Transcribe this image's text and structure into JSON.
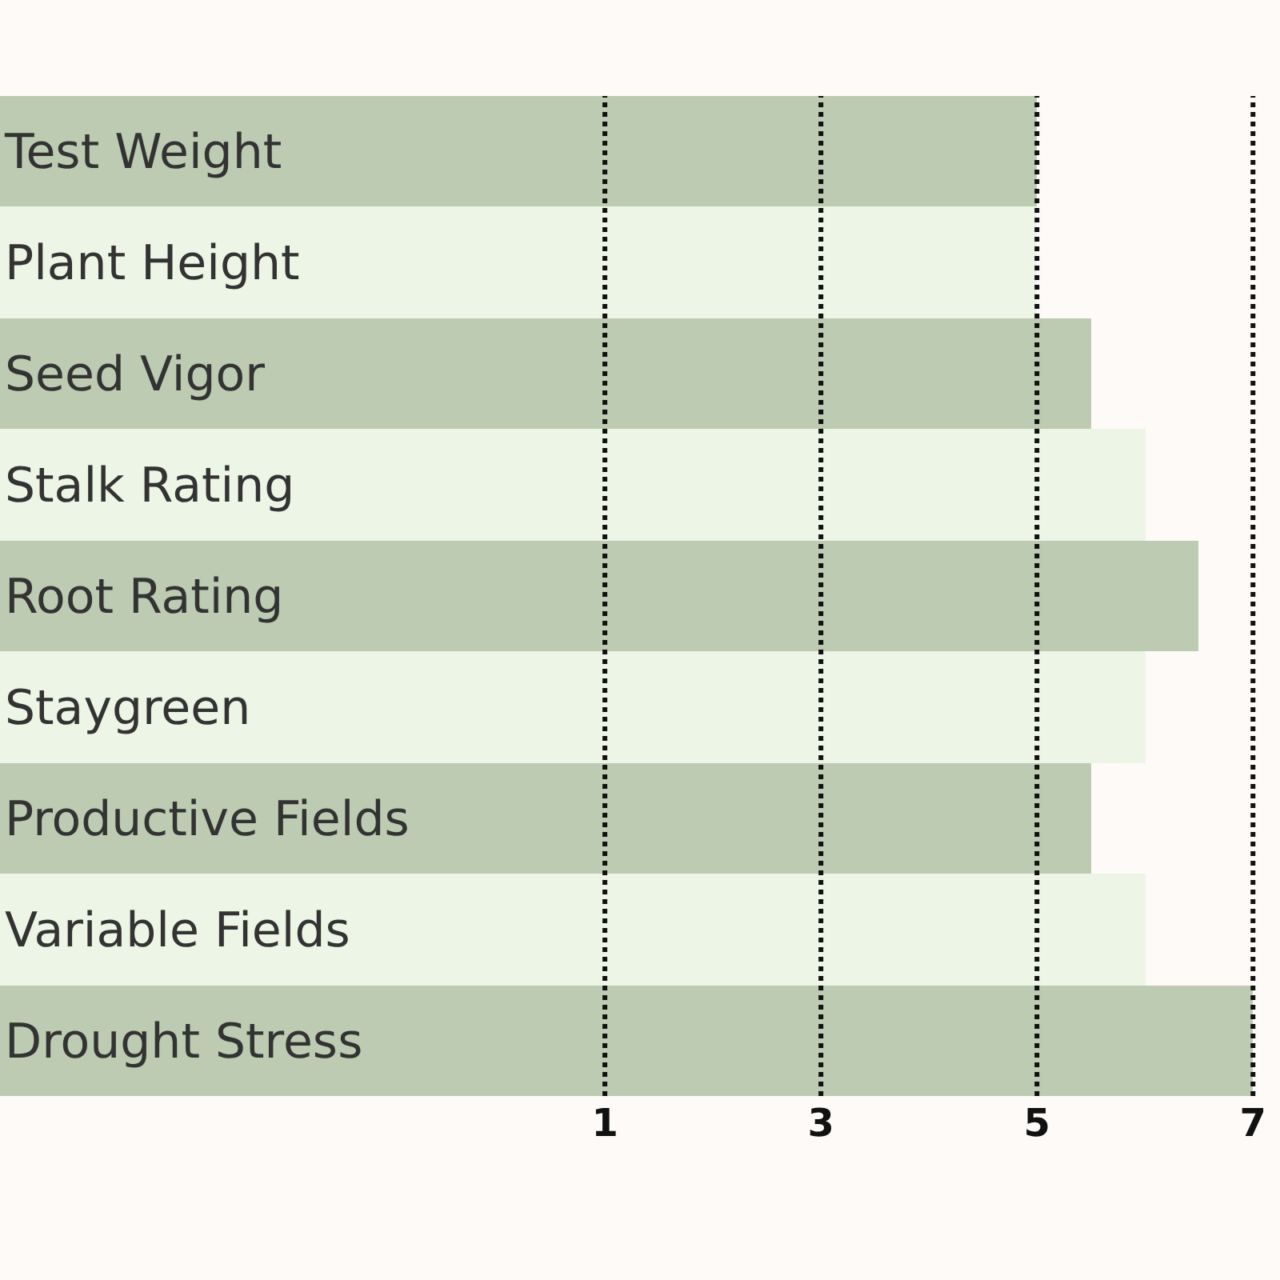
{
  "chart_data": {
    "type": "bar",
    "orientation": "horizontal",
    "categories": [
      "Test Weight",
      "Plant Height",
      "Seed Vigor",
      "Stalk Rating",
      "Root Rating",
      "Staygreen",
      "Productive Fields",
      "Variable Fields",
      "Drought Stress"
    ],
    "base": [
      -4.6,
      -4.6,
      -4.6,
      -4.6,
      -4.6,
      -4.6,
      -4.6,
      -4.6,
      -4.6
    ],
    "values": [
      9.6,
      9.6,
      10.1,
      10.6,
      11.1,
      10.6,
      10.1,
      10.6,
      11.6
    ],
    "colors": [
      "#bccbb1",
      "#edf5e6",
      "#bccbb1",
      "#edf5e6",
      "#bccbb1",
      "#edf5e6",
      "#bccbb1",
      "#edf5e6",
      "#bccbb1"
    ],
    "xlim": [
      -4.6,
      7.25
    ],
    "xticks": [
      1,
      3,
      5,
      7
    ],
    "grid": "x",
    "line_style": "dotted"
  }
}
